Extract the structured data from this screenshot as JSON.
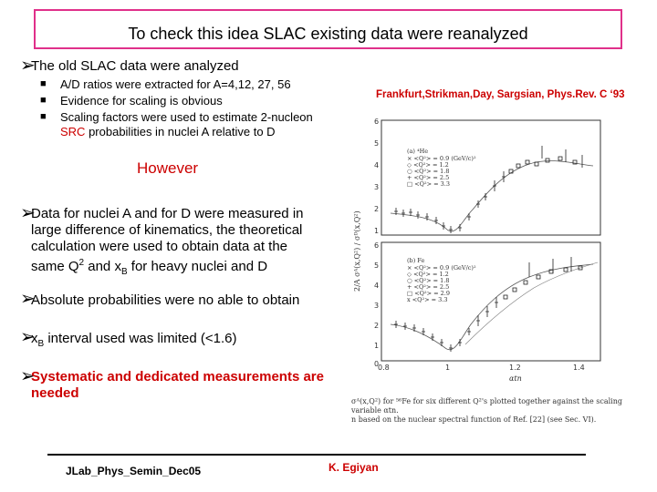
{
  "title": "To check this idea SLAC existing data were reanalyzed",
  "bullets": {
    "b1": "The old SLAC data were analyzed",
    "sub1": "A/D ratios were extracted for A=4,12, 27, 56",
    "sub2": "Evidence for scaling is obvious",
    "sub3a": "Scaling factors were used to estimate 2-nucleon",
    "sub3b_src": "SRC",
    "sub3b_rest": " probabilities in nuclei A relative to D",
    "however": "However",
    "b2_l1": "Data for nuclei A and for D were measured in",
    "b2_l2": "large difference of kinematics, the theoretical",
    "b2_l3": "calculation were  used to obtain data at the",
    "b2_l4_a": "same Q",
    "b2_l4_sup": "2",
    "b2_l4_b": " and x",
    "b2_l4_sub": "B",
    "b2_l4_c": " for heavy nuclei and D",
    "b3": "Absolute probabilities were no able to obtain",
    "b4_a": "x",
    "b4_sub": "B",
    "b4_b": " interval used was limited (<1.6)",
    "b5_l1": "Systematic and dedicated measurements are",
    "b5_l2": "needed"
  },
  "reference": "Frankfurt,Strikman,Day, Sargsian, Phys.Rev. C ‘93",
  "figure": {
    "top_panel_label": "(a) ⁴He",
    "bottom_panel_label": "(b) Fe",
    "legend": [
      "× <Q²> = 0.9 (GeV/c)²",
      "◇ <Q²> = 1.2",
      "○ <Q²> = 1.8",
      "+ <Q²> = 2.5",
      "□ <Q²> = 3.3"
    ],
    "legend_b": [
      "× <Q²> = 0.9 (GeV/c)²",
      "◇ <Q²> = 1.2",
      "○ <Q²> = 1.8",
      "+ <Q²> = 2.5",
      "□ <Q²> = 2.9",
      "x <Q²> = 3.3"
    ],
    "y_axis_label": "2/A σᴬ(x,Q²) / σᴰ(x,Q²)",
    "x_axis_label": "αtn",
    "y_ticks_top": [
      "6",
      "5",
      "4",
      "3",
      "2",
      "1"
    ],
    "y_ticks_bottom": [
      "6",
      "5",
      "4",
      "3",
      "2",
      "1",
      "0"
    ],
    "x_ticks": [
      "0.8",
      "1",
      "1.2",
      "1.4"
    ],
    "caption_l1": "σᴬ(x,Q²)  for ⁵⁶Fe for six different Q²'s plotted together against the scaling variable αtn.",
    "caption_l2": "n based on the nuclear spectral function of Ref. [22] (see Sec. VI)."
  },
  "footer": {
    "left": "JLab_Phys_Semin_Dec05",
    "right": "K. Egiyan"
  }
}
